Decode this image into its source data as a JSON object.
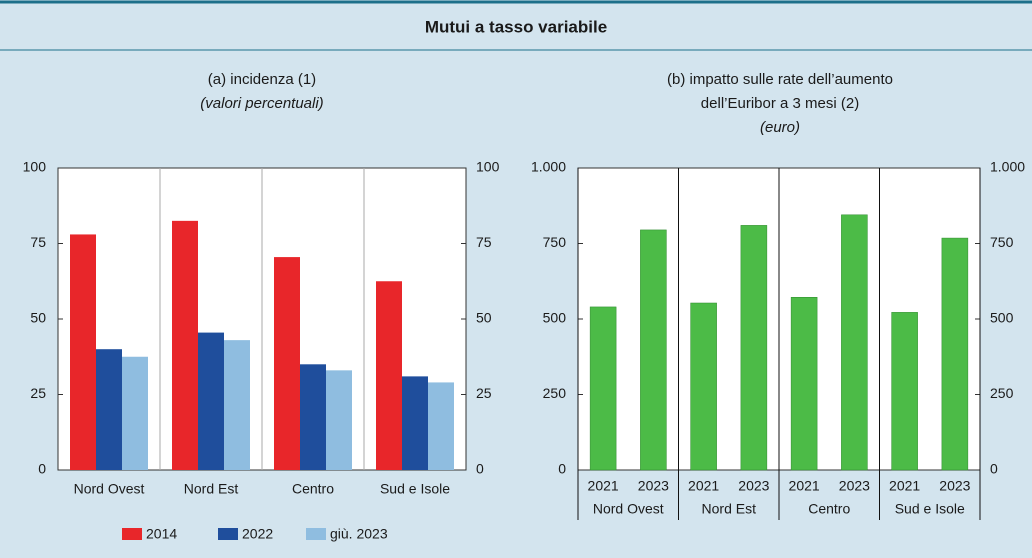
{
  "title": "Mutui a tasso variabile",
  "charts": [
    {
      "type": "bar",
      "title": "(a) incidenza (1)",
      "subtitle": "(valori percentuali)",
      "categories": [
        "Nord Ovest",
        "Nord Est",
        "Centro",
        "Sud e Isole"
      ],
      "series": [
        {
          "name": "2014",
          "color": "#e8262a",
          "values": [
            78,
            82.5,
            70.5,
            62.5
          ]
        },
        {
          "name": "2022",
          "color": "#1f4e9c",
          "values": [
            40,
            45.5,
            35,
            31
          ]
        },
        {
          "name": "giù. 2023",
          "color": "#8fbde0",
          "values": [
            37.5,
            43,
            33,
            29
          ]
        }
      ],
      "ylim": [
        0,
        100
      ],
      "yticks": [
        0,
        25,
        50,
        75,
        100
      ]
    },
    {
      "type": "grouped-bar",
      "title": "(b) impatto sulle rate dell’aumento",
      "title_line2": "dell’Euribor a 3 mesi (2)",
      "subtitle": "(euro)",
      "groups": [
        "Nord Ovest",
        "Nord Est",
        "Centro",
        "Sud e Isole"
      ],
      "categories": [
        "2021",
        "2023",
        "2021",
        "2023",
        "2021",
        "2023",
        "2021",
        "2023"
      ],
      "color": "#4cbb47",
      "values": [
        540,
        795,
        553,
        810,
        572,
        845,
        522,
        768
      ],
      "ylim": [
        0,
        1000
      ],
      "yticks": [
        0,
        250,
        500,
        750,
        {
          "value": 1000,
          "label": "1.000"
        }
      ]
    }
  ]
}
